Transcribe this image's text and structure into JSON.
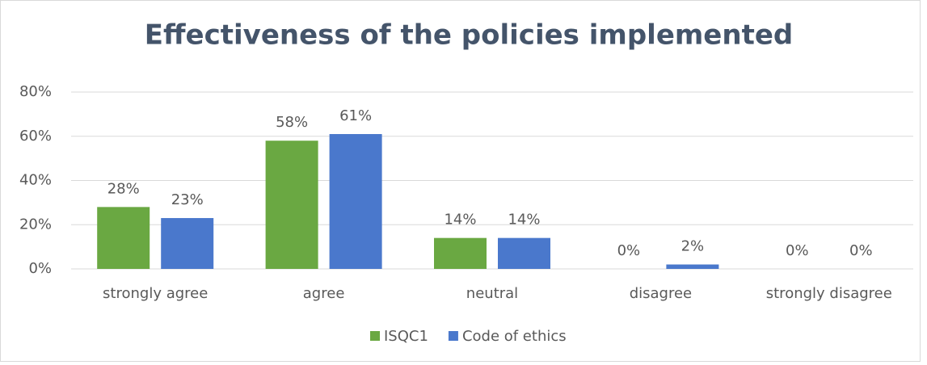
{
  "chart_data": {
    "type": "bar",
    "title": "Effectiveness of the policies implemented",
    "categories": [
      "strongly agree",
      "agree",
      "neutral",
      "disagree",
      "strongly disagree"
    ],
    "series": [
      {
        "name": "ISQC1",
        "color": "#6aa842",
        "values": [
          28,
          58,
          14,
          0,
          0
        ],
        "value_labels": [
          "28%",
          "58%",
          "14%",
          "0%",
          "0%"
        ]
      },
      {
        "name": "Code of ethics",
        "color": "#4a78cc",
        "values": [
          23,
          61,
          14,
          2,
          0
        ],
        "value_labels": [
          "23%",
          "61%",
          "14%",
          "2%",
          "0%"
        ]
      }
    ],
    "ylim": [
      0,
      80
    ],
    "yticks": [
      {
        "value": 0,
        "label": "0%"
      },
      {
        "value": 20,
        "label": "20%"
      },
      {
        "value": 40,
        "label": "40%"
      },
      {
        "value": 60,
        "label": "60%"
      },
      {
        "value": 80,
        "label": "80%"
      }
    ],
    "grid": true,
    "legend": "bottom"
  }
}
